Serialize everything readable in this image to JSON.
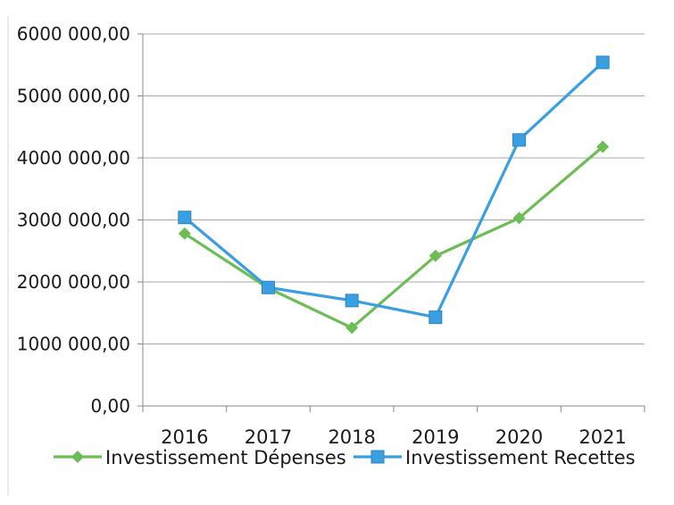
{
  "chart_data": {
    "type": "line",
    "title": "",
    "xlabel": "",
    "ylabel": "",
    "categories": [
      "2016",
      "2017",
      "2018",
      "2019",
      "2020",
      "2021"
    ],
    "ylim": [
      0,
      6000000
    ],
    "yticks": [
      0,
      1000000,
      2000000,
      3000000,
      4000000,
      5000000,
      6000000
    ],
    "ytick_labels": [
      "0,00",
      "1000 000,00",
      "2000 000,00",
      "3000 000,00",
      "4000 000,00",
      "5000 000,00",
      "6000 000,00"
    ],
    "grid": true,
    "legend_position": "bottom",
    "series": [
      {
        "name": "Investissement Dépenses",
        "color": "#6cbd55",
        "marker": "diamond",
        "values": [
          2780000,
          1900000,
          1260000,
          2420000,
          3030000,
          4180000
        ]
      },
      {
        "name": "Investissement Recettes",
        "color": "#3a9fe0",
        "marker": "square",
        "values": [
          3040000,
          1910000,
          1700000,
          1430000,
          4290000,
          5540000
        ]
      }
    ]
  }
}
